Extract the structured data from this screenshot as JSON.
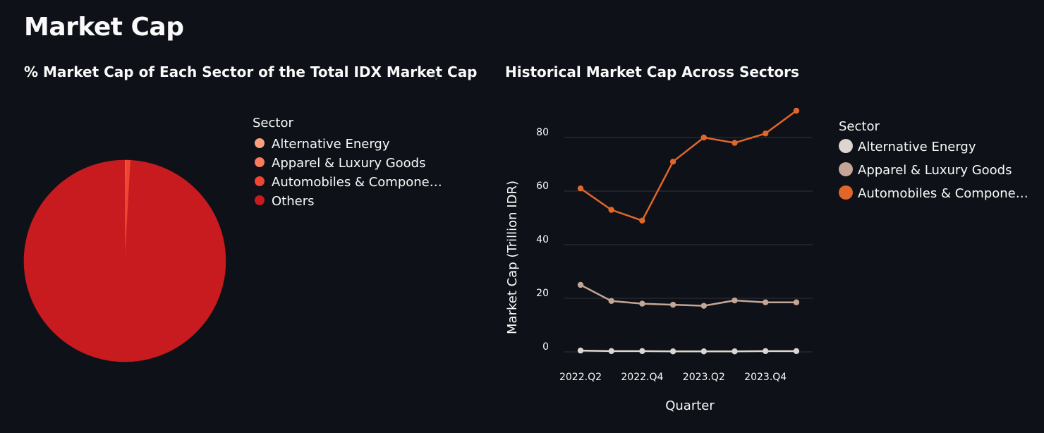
{
  "page": {
    "title": "Market Cap"
  },
  "chart_data": [
    {
      "type": "pie",
      "title": "% Market Cap of Each Sector of the Total IDX Market Cap",
      "legend": {
        "title": "Sector",
        "position": "right",
        "entries": [
          "Alternative Energy",
          "Apparel & Luxury Goods",
          "Automobiles & Compone…",
          "Others"
        ]
      },
      "slices": [
        {
          "label": "Alternative Energy",
          "value": 0.0,
          "color": "#fca082"
        },
        {
          "label": "Apparel & Luxury Goods",
          "value": 0.15,
          "color": "#fb7b5b"
        },
        {
          "label": "Automobiles & Components",
          "value": 0.75,
          "color": "#ef4533"
        },
        {
          "label": "Others",
          "value": 99.1,
          "color": "#c81b1f"
        }
      ]
    },
    {
      "type": "line",
      "title": "Historical Market Cap Across Sectors",
      "xlabel": "Quarter",
      "ylabel": "Market Cap (Trillion IDR)",
      "ylim": [
        0,
        95
      ],
      "yticks": [
        0,
        20,
        40,
        60,
        80
      ],
      "x": [
        "2022.Q2",
        "2022.Q3",
        "2022.Q4",
        "2023.Q1",
        "2023.Q2",
        "2023.Q3",
        "2023.Q4",
        "2024.Q1"
      ],
      "xtick_labels": [
        "2022.Q2",
        "2022.Q4",
        "2023.Q2",
        "2023.Q4"
      ],
      "grid": true,
      "legend": {
        "title": "Sector",
        "position": "right",
        "entries": [
          "Alternative Energy",
          "Apparel & Luxury Goods",
          "Automobiles & Compone…"
        ]
      },
      "series": [
        {
          "name": "Alternative Energy",
          "color": "#dcd5d0",
          "values": [
            0.5,
            0.3,
            0.3,
            0.2,
            0.2,
            0.2,
            0.3,
            0.3
          ]
        },
        {
          "name": "Apparel & Luxury Goods",
          "color": "#c4a697",
          "values": [
            25,
            19,
            18,
            17.6,
            17.2,
            19.2,
            18.5,
            18.5
          ]
        },
        {
          "name": "Automobiles & Components",
          "color": "#e0672a",
          "values": [
            61,
            53,
            49,
            71,
            80,
            78,
            81.5,
            90
          ]
        }
      ]
    }
  ]
}
